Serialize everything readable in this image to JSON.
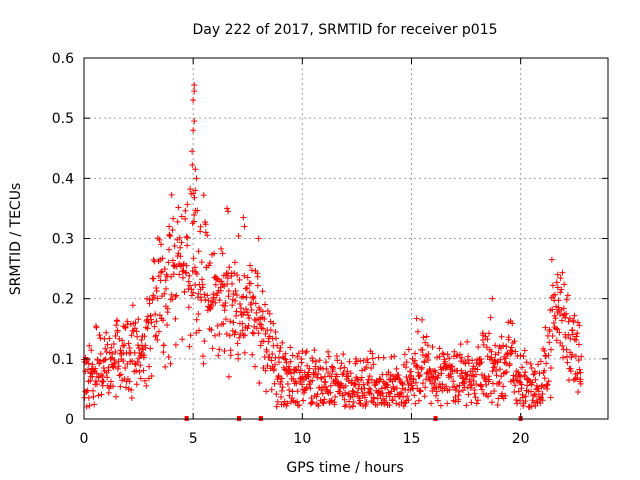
{
  "chart_data": {
    "type": "scatter",
    "title": "Day 222 of 2017, SRMTID for receiver p015",
    "xlabel": "GPS time / hours",
    "ylabel": "SRMTID / TECUs",
    "xlim": [
      0,
      24
    ],
    "ylim": [
      0,
      0.6
    ],
    "xticks": [
      0,
      5,
      10,
      15,
      20
    ],
    "yticks": [
      0,
      0.1,
      0.2,
      0.3,
      0.4,
      0.5,
      0.6
    ],
    "xtick_labels": [
      "0",
      "5",
      "10",
      "15",
      "20"
    ],
    "ytick_labels": [
      "0",
      "0.1",
      "0.2",
      "0.3",
      "0.4",
      "0.5",
      "0.6"
    ],
    "grid": true,
    "marker": "+",
    "series_color": "#ff0000",
    "baseline_markers_x": [
      4.7,
      7.1,
      8.1,
      16.1,
      20.0
    ],
    "trend_points": [
      {
        "x": 0.0,
        "y": 0.07
      },
      {
        "x": 0.5,
        "y": 0.085
      },
      {
        "x": 1.0,
        "y": 0.1
      },
      {
        "x": 1.5,
        "y": 0.11
      },
      {
        "x": 2.0,
        "y": 0.105
      },
      {
        "x": 2.5,
        "y": 0.115
      },
      {
        "x": 3.0,
        "y": 0.15
      },
      {
        "x": 3.5,
        "y": 0.2
      },
      {
        "x": 4.0,
        "y": 0.24
      },
      {
        "x": 4.5,
        "y": 0.25
      },
      {
        "x": 5.0,
        "y": 0.26
      },
      {
        "x": 5.5,
        "y": 0.22
      },
      {
        "x": 6.0,
        "y": 0.2
      },
      {
        "x": 6.5,
        "y": 0.21
      },
      {
        "x": 7.0,
        "y": 0.19
      },
      {
        "x": 7.5,
        "y": 0.2
      },
      {
        "x": 8.0,
        "y": 0.17
      },
      {
        "x": 8.5,
        "y": 0.11
      },
      {
        "x": 9.0,
        "y": 0.07
      },
      {
        "x": 10.0,
        "y": 0.06
      },
      {
        "x": 11.0,
        "y": 0.055
      },
      {
        "x": 12.0,
        "y": 0.06
      },
      {
        "x": 13.0,
        "y": 0.06
      },
      {
        "x": 14.0,
        "y": 0.05
      },
      {
        "x": 15.0,
        "y": 0.07
      },
      {
        "x": 15.5,
        "y": 0.1
      },
      {
        "x": 16.0,
        "y": 0.06
      },
      {
        "x": 17.0,
        "y": 0.07
      },
      {
        "x": 18.0,
        "y": 0.07
      },
      {
        "x": 18.5,
        "y": 0.1
      },
      {
        "x": 19.0,
        "y": 0.08
      },
      {
        "x": 19.5,
        "y": 0.1
      },
      {
        "x": 20.0,
        "y": 0.06
      },
      {
        "x": 21.0,
        "y": 0.05
      },
      {
        "x": 21.5,
        "y": 0.18
      },
      {
        "x": 22.0,
        "y": 0.17
      },
      {
        "x": 22.5,
        "y": 0.11
      },
      {
        "x": 22.8,
        "y": 0.1
      }
    ],
    "spikes": [
      {
        "x": 5.05,
        "y": 0.555
      },
      {
        "x": 5.05,
        "y": 0.545
      },
      {
        "x": 5.0,
        "y": 0.53
      },
      {
        "x": 5.05,
        "y": 0.495
      },
      {
        "x": 5.0,
        "y": 0.48
      },
      {
        "x": 4.95,
        "y": 0.445
      },
      {
        "x": 5.1,
        "y": 0.415
      },
      {
        "x": 5.15,
        "y": 0.4
      },
      {
        "x": 5.1,
        "y": 0.38
      },
      {
        "x": 5.0,
        "y": 0.375
      },
      {
        "x": 6.55,
        "y": 0.35
      },
      {
        "x": 6.6,
        "y": 0.345
      },
      {
        "x": 7.3,
        "y": 0.335
      },
      {
        "x": 7.35,
        "y": 0.32
      },
      {
        "x": 3.9,
        "y": 0.32
      },
      {
        "x": 8.0,
        "y": 0.3
      },
      {
        "x": 21.7,
        "y": 0.24
      },
      {
        "x": 18.7,
        "y": 0.2
      }
    ]
  }
}
